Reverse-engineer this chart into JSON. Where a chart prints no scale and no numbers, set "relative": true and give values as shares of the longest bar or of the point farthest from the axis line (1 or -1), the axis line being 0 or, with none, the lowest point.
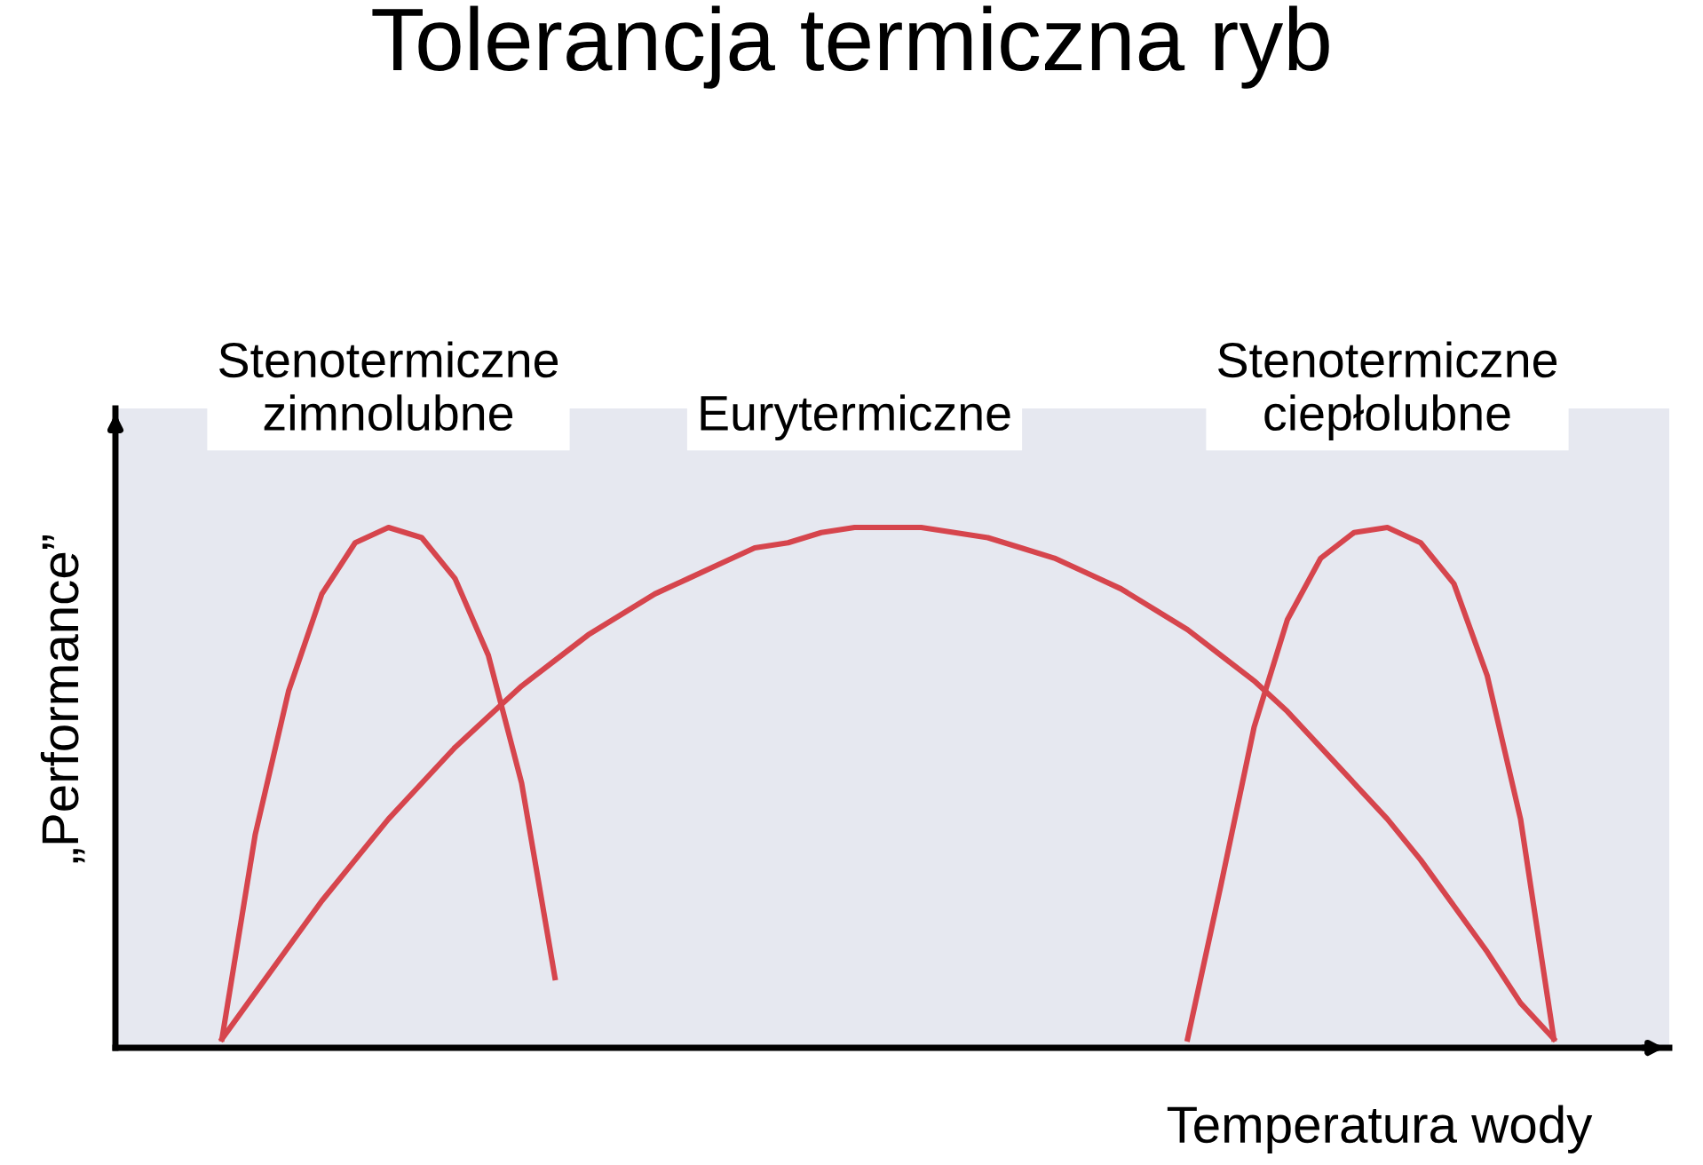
{
  "chart_data": {
    "type": "line",
    "title": "Tolerancja termiczna ryb",
    "xlabel": "Temperatura wody",
    "ylabel": "„Performance”",
    "relative": true,
    "legend": false,
    "marker": "none",
    "line_style": "solid",
    "categories": [
      null,
      null,
      null,
      null,
      null,
      null,
      null,
      null,
      null,
      null,
      null,
      null,
      null,
      null,
      null,
      null,
      null,
      null,
      null,
      null,
      null,
      null,
      null,
      null,
      null,
      null,
      null,
      null,
      null,
      null,
      null,
      null,
      null,
      null,
      null,
      null,
      null,
      null,
      null,
      null,
      null
    ],
    "series": [
      {
        "name": "Stenotermiczne\nzimnolubne",
        "color": "#d6454d",
        "values": [
          0,
          0.4,
          0.68,
          0.87,
          0.97,
          1.0,
          0.98,
          0.9,
          0.75,
          0.5,
          0.12,
          null,
          null,
          null,
          null,
          null,
          null,
          null,
          null,
          null,
          null,
          null,
          null,
          null,
          null,
          null,
          null,
          null,
          null,
          null,
          null,
          null,
          null,
          null,
          null,
          null,
          null,
          null,
          null,
          null,
          null
        ]
      },
      {
        "name": "Eurytermiczne",
        "color": "#d6454d",
        "values": [
          0,
          0.09,
          0.18,
          0.27,
          0.35,
          0.43,
          0.5,
          0.57,
          0.63,
          0.69,
          0.74,
          0.79,
          0.83,
          0.87,
          0.9,
          0.93,
          0.96,
          0.97,
          0.99,
          1.0,
          1.0,
          1.0,
          0.99,
          0.98,
          0.96,
          0.94,
          0.91,
          0.88,
          0.84,
          0.8,
          0.75,
          0.7,
          0.64,
          0.57,
          0.5,
          0.43,
          0.35,
          0.26,
          0.17,
          0.07,
          0
        ]
      },
      {
        "name": "Stenotermiczne\nciepłolubne",
        "color": "#d6454d",
        "values": [
          null,
          null,
          null,
          null,
          null,
          null,
          null,
          null,
          null,
          null,
          null,
          null,
          null,
          null,
          null,
          null,
          null,
          null,
          null,
          null,
          null,
          null,
          null,
          null,
          null,
          null,
          null,
          null,
          null,
          0,
          0.3,
          0.61,
          0.82,
          0.94,
          0.99,
          1.0,
          0.97,
          0.89,
          0.71,
          0.43,
          0
        ]
      }
    ]
  }
}
